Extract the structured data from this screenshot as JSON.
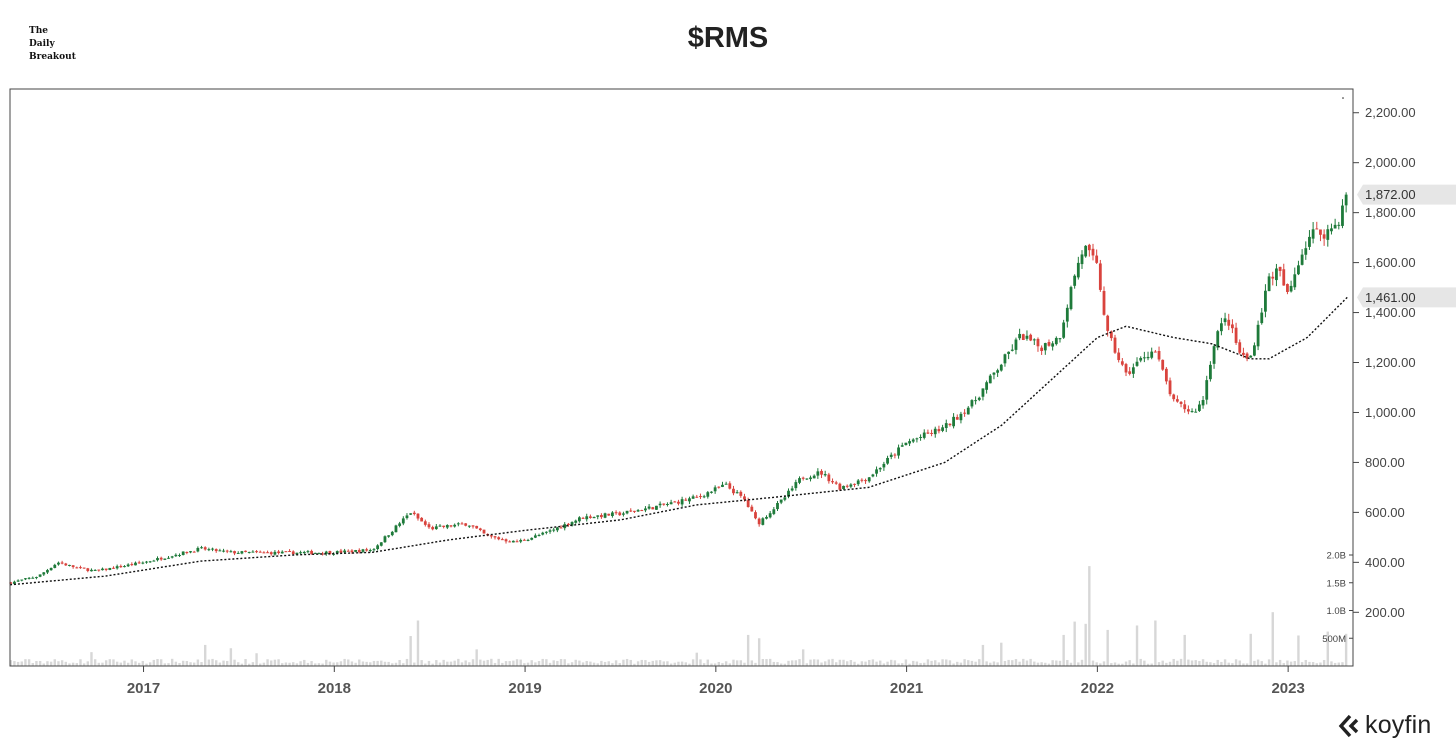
{
  "brand": {
    "line1": "The",
    "line2": "Daily",
    "line3": "Breakout"
  },
  "logo": {
    "text": "koyfin"
  },
  "chart_data": {
    "type": "candlestick",
    "title": "$RMS",
    "interval": "weekly",
    "price_axis": {
      "range": [
        -15,
        2295
      ],
      "ticks": [
        200,
        400,
        600,
        800,
        1000,
        1200,
        1400,
        1600,
        1800,
        2000,
        2200
      ],
      "tick_labels": [
        "200.00",
        "400.00",
        "600.00",
        "800.00",
        "1,000.00",
        "1,200.00",
        "1,400.00",
        "1,600.00",
        "1,800.00",
        "2,000.00",
        "2,200.00"
      ]
    },
    "volume_axis": {
      "range": [
        0,
        2000000000
      ],
      "ticks": [
        500000000,
        1000000000,
        1500000000,
        2000000000
      ],
      "tick_labels": [
        "500M",
        "1.0B",
        "1.5B",
        "2.0B"
      ]
    },
    "time_axis": {
      "range": [
        2016.3,
        2023.34
      ],
      "ticks": [
        2017,
        2018,
        2019,
        2020,
        2021,
        2022,
        2023
      ],
      "tick_labels": [
        "2017",
        "2018",
        "2019",
        "2020",
        "2021",
        "2022",
        "2023"
      ]
    },
    "last_price": {
      "value": 1872,
      "label": "1,872.00"
    },
    "moving_average_last": {
      "value": 1461,
      "label": "1,461.00"
    },
    "price_anchors": [
      [
        2016.3,
        318
      ],
      [
        2016.45,
        345
      ],
      [
        2016.55,
        400
      ],
      [
        2016.65,
        378
      ],
      [
        2016.75,
        365
      ],
      [
        2017.0,
        400
      ],
      [
        2017.3,
        455
      ],
      [
        2017.45,
        440
      ],
      [
        2017.7,
        438
      ],
      [
        2018.0,
        440
      ],
      [
        2018.2,
        450
      ],
      [
        2018.4,
        600
      ],
      [
        2018.5,
        535
      ],
      [
        2018.7,
        555
      ],
      [
        2018.8,
        505
      ],
      [
        2018.95,
        480
      ],
      [
        2019.1,
        515
      ],
      [
        2019.3,
        580
      ],
      [
        2019.5,
        595
      ],
      [
        2019.7,
        625
      ],
      [
        2019.9,
        660
      ],
      [
        2020.05,
        710
      ],
      [
        2020.15,
        650
      ],
      [
        2020.22,
        555
      ],
      [
        2020.35,
        650
      ],
      [
        2020.45,
        740
      ],
      [
        2020.55,
        760
      ],
      [
        2020.65,
        700
      ],
      [
        2020.8,
        740
      ],
      [
        2020.9,
        810
      ],
      [
        2021.0,
        880
      ],
      [
        2021.2,
        940
      ],
      [
        2021.35,
        1040
      ],
      [
        2021.5,
        1200
      ],
      [
        2021.6,
        1310
      ],
      [
        2021.7,
        1260
      ],
      [
        2021.8,
        1300
      ],
      [
        2021.88,
        1550
      ],
      [
        2021.93,
        1665
      ],
      [
        2022.0,
        1580
      ],
      [
        2022.05,
        1320
      ],
      [
        2022.15,
        1150
      ],
      [
        2022.25,
        1230
      ],
      [
        2022.3,
        1250
      ],
      [
        2022.4,
        1040
      ],
      [
        2022.5,
        1000
      ],
      [
        2022.55,
        1040
      ],
      [
        2022.62,
        1310
      ],
      [
        2022.68,
        1380
      ],
      [
        2022.75,
        1230
      ],
      [
        2022.8,
        1210
      ],
      [
        2022.9,
        1540
      ],
      [
        2022.95,
        1570
      ],
      [
        2023.0,
        1460
      ],
      [
        2023.05,
        1600
      ],
      [
        2023.12,
        1720
      ],
      [
        2023.2,
        1720
      ],
      [
        2023.26,
        1760
      ],
      [
        2023.31,
        1872
      ]
    ],
    "moving_average_anchors": [
      [
        2016.3,
        310
      ],
      [
        2016.8,
        345
      ],
      [
        2017.3,
        405
      ],
      [
        2017.8,
        430
      ],
      [
        2018.2,
        440
      ],
      [
        2018.6,
        490
      ],
      [
        2019.0,
        528
      ],
      [
        2019.5,
        570
      ],
      [
        2019.9,
        630
      ],
      [
        2020.3,
        660
      ],
      [
        2020.8,
        700
      ],
      [
        2021.2,
        800
      ],
      [
        2021.5,
        950
      ],
      [
        2021.8,
        1160
      ],
      [
        2022.0,
        1300
      ],
      [
        2022.15,
        1345
      ],
      [
        2022.4,
        1300
      ],
      [
        2022.6,
        1275
      ],
      [
        2022.8,
        1215
      ],
      [
        2022.9,
        1215
      ],
      [
        2023.1,
        1300
      ],
      [
        2023.31,
        1461
      ]
    ],
    "volume_spikes": [
      [
        2016.72,
        250000000
      ],
      [
        2017.32,
        380000000
      ],
      [
        2017.45,
        320000000
      ],
      [
        2017.6,
        230000000
      ],
      [
        2018.43,
        820000000
      ],
      [
        2018.4,
        540000000
      ],
      [
        2018.75,
        300000000
      ],
      [
        2019.9,
        240000000
      ],
      [
        2020.17,
        560000000
      ],
      [
        2020.22,
        500000000
      ],
      [
        2020.45,
        300000000
      ],
      [
        2021.4,
        380000000
      ],
      [
        2021.5,
        420000000
      ],
      [
        2021.83,
        560000000
      ],
      [
        2021.88,
        800000000
      ],
      [
        2021.93,
        760000000
      ],
      [
        2021.96,
        1800000000
      ],
      [
        2022.05,
        650000000
      ],
      [
        2022.2,
        730000000
      ],
      [
        2022.3,
        820000000
      ],
      [
        2022.45,
        560000000
      ],
      [
        2022.8,
        580000000
      ],
      [
        2022.92,
        970000000
      ],
      [
        2023.05,
        550000000
      ],
      [
        2023.2,
        620000000
      ],
      [
        2023.3,
        580000000
      ]
    ],
    "volume_base": 100000000,
    "colors": {
      "up": "#1e7a3a",
      "down": "#d9433d",
      "volume": "#d7d7d7",
      "ma": "#111111",
      "frame": "#444444",
      "label_bg": "#e6e6e6"
    }
  }
}
